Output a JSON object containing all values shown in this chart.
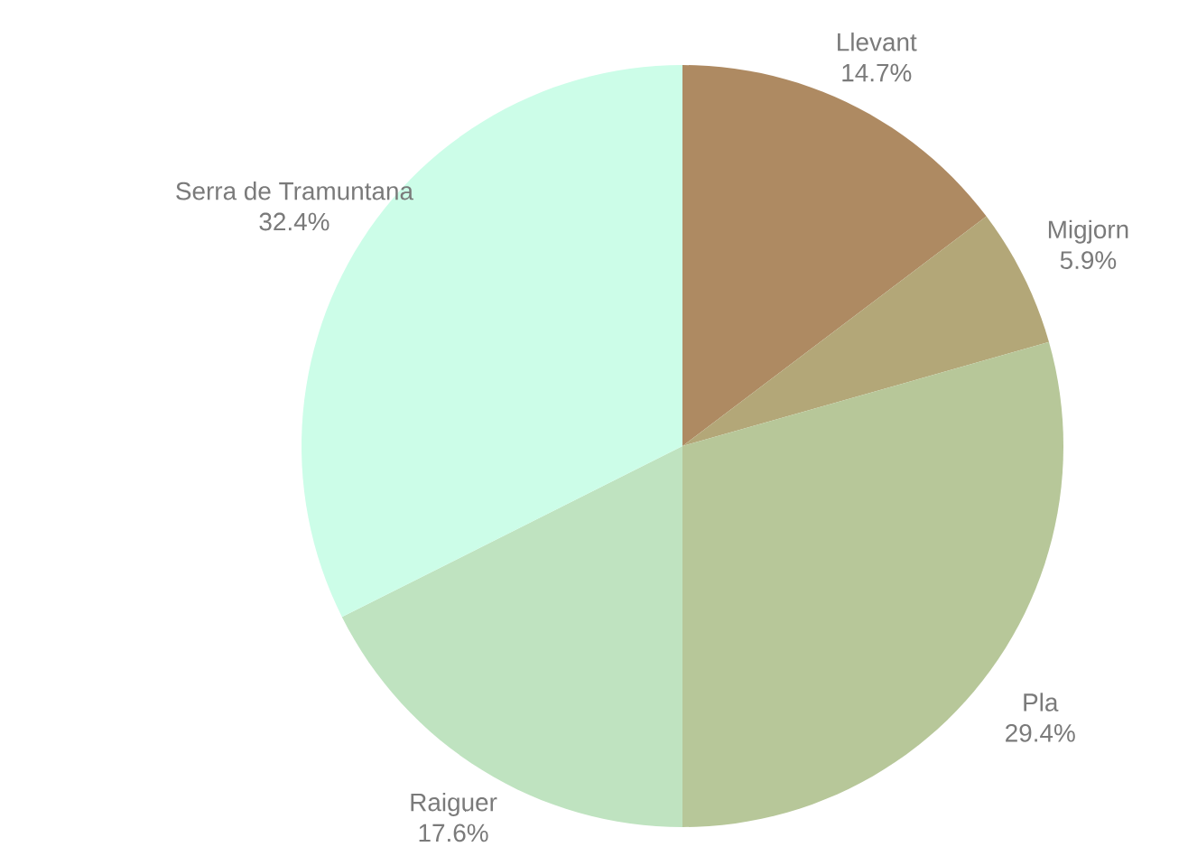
{
  "chart_data": {
    "type": "pie",
    "categories": [
      "Llevant",
      "Migjorn",
      "Pla",
      "Raiguer",
      "Serra de Tramuntana"
    ],
    "values": [
      14.7,
      5.9,
      29.4,
      17.6,
      32.4
    ],
    "value_labels": [
      "14.7%",
      "5.9%",
      "29.4%",
      "17.6%",
      "32.4%"
    ],
    "colors": [
      "#ae8a62",
      "#b3a778",
      "#b7c799",
      "#bfe3c0",
      "#ccfde8"
    ]
  }
}
